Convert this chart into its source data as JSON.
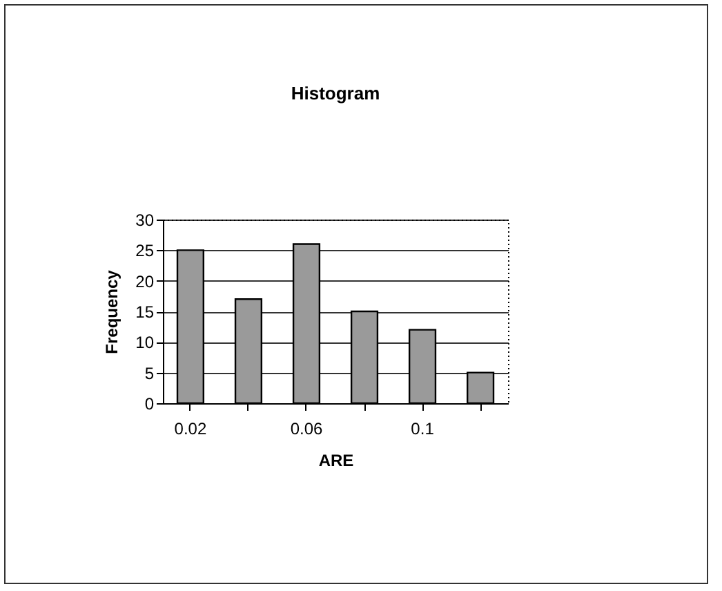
{
  "chart_data": {
    "type": "bar",
    "title": "Histogram",
    "xlabel": "ARE",
    "ylabel": "Frequency",
    "categories": [
      "0.02",
      null,
      "0.06",
      null,
      "0.1",
      null
    ],
    "values": [
      25,
      17,
      26,
      15,
      12,
      5
    ],
    "color": "#9a9a9a",
    "ylim": [
      0,
      30
    ],
    "yticks": [
      0,
      5,
      10,
      15,
      20,
      25,
      30
    ],
    "grid": "y"
  }
}
